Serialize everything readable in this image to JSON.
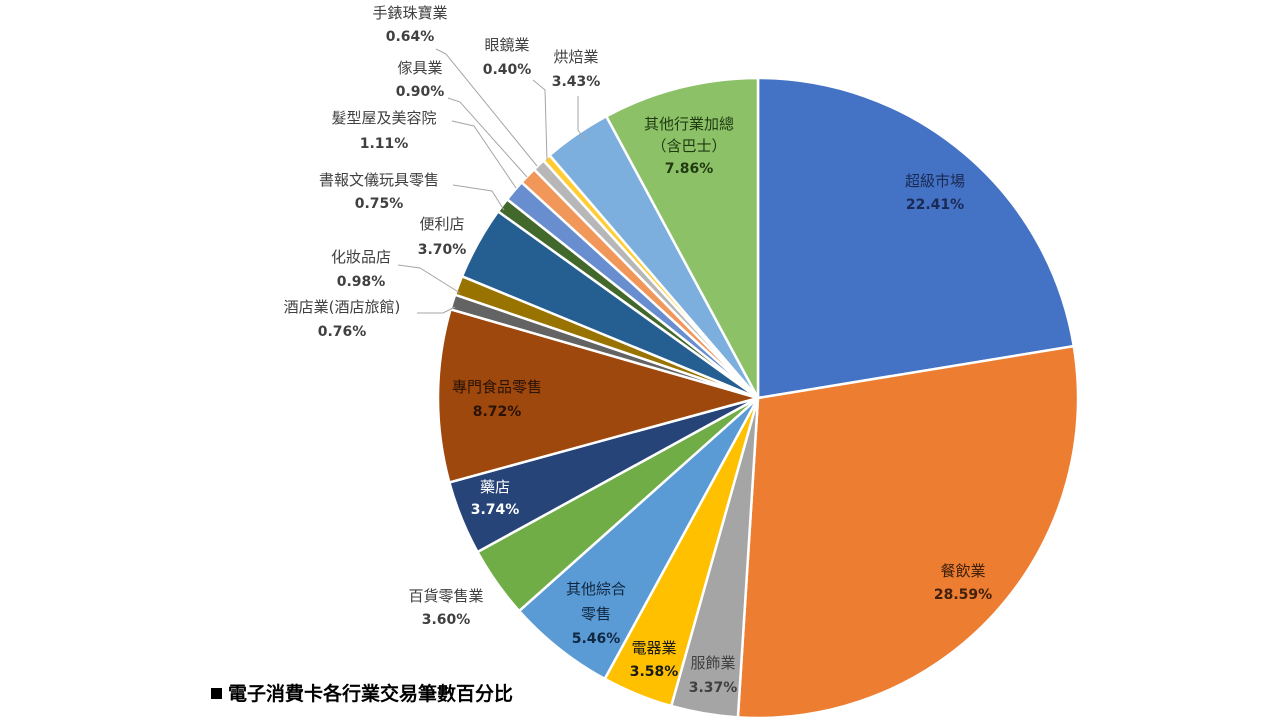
{
  "caption": "電子消費卡各行業交易筆數百分比",
  "chart_data": {
    "type": "pie",
    "title": "",
    "start_angle_deg": 0,
    "direction": "clockwise",
    "legend": "none",
    "slices": [
      {
        "name": "超級市場",
        "value": 22.41,
        "color": "#4472c4",
        "label": "22.41%"
      },
      {
        "name": "餐飲業",
        "value": 28.59,
        "color": "#ed7d31",
        "label": "28.59%"
      },
      {
        "name": "服飾業",
        "value": 3.37,
        "color": "#a5a5a5",
        "label": "3.37%"
      },
      {
        "name": "電器業",
        "value": 3.58,
        "color": "#ffc000",
        "label": "3.58%"
      },
      {
        "name": "其他綜合零售",
        "value": 5.46,
        "color": "#5b9bd5",
        "label": "5.46%"
      },
      {
        "name": "百貨零售業",
        "value": 3.6,
        "color": "#70ad47",
        "label": "3.60%"
      },
      {
        "name": "藥店",
        "value": 3.74,
        "color": "#264478",
        "label": "3.74%"
      },
      {
        "name": "專門食品零售",
        "value": 8.72,
        "color": "#9e480e",
        "label": "8.72%"
      },
      {
        "name": "酒店業(酒店旅館)",
        "value": 0.76,
        "color": "#636363",
        "label": "0.76%"
      },
      {
        "name": "化妝品店",
        "value": 0.98,
        "color": "#997300",
        "label": "0.98%"
      },
      {
        "name": "便利店",
        "value": 3.7,
        "color": "#255e91",
        "label": "3.70%"
      },
      {
        "name": "書報文儀玩具零售",
        "value": 0.75,
        "color": "#43682b",
        "label": "0.75%"
      },
      {
        "name": "髮型屋及美容院",
        "value": 1.11,
        "color": "#698ed0",
        "label": "1.11%"
      },
      {
        "name": "傢具業",
        "value": 0.9,
        "color": "#f1975a",
        "label": "0.90%"
      },
      {
        "name": "手錶珠寶業",
        "value": 0.64,
        "color": "#b7b7b7",
        "label": "0.64%"
      },
      {
        "name": "眼鏡業",
        "value": 0.4,
        "color": "#ffcd33",
        "label": "0.40%"
      },
      {
        "name": "烘焙業",
        "value": 3.43,
        "color": "#7cafdd",
        "label": "3.43%"
      },
      {
        "name": "其他行業加總（含巴士）",
        "value": 7.86,
        "color": "#8cc168",
        "label": "7.86%"
      }
    ]
  }
}
